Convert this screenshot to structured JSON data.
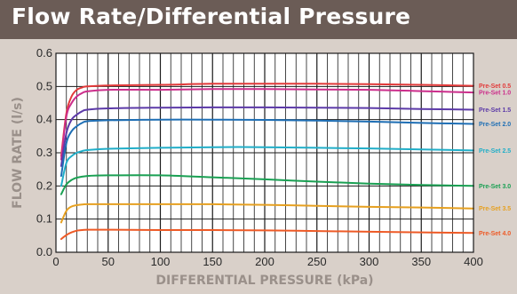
{
  "header": {
    "title": "Flow Rate/Differential Pressure"
  },
  "chart_data": {
    "type": "line",
    "xlabel": "DIFFERENTIAL PRESSURE (kPa)",
    "ylabel": "FLOW RATE (l/s)",
    "xlim": [
      0,
      400
    ],
    "ylim": [
      0,
      0.6
    ],
    "xticks": [
      "0",
      "50",
      "100",
      "150",
      "200",
      "250",
      "300",
      "350",
      "400"
    ],
    "yticks": [
      "0.0",
      "0.1",
      "0.2",
      "0.3",
      "0.4",
      "0.5",
      "0.6"
    ],
    "grid": true,
    "legend": "right",
    "series": [
      {
        "name": "Pre-Set 0.5",
        "color": "#e23a3a",
        "points": [
          [
            5,
            0.29
          ],
          [
            10,
            0.42
          ],
          [
            15,
            0.47
          ],
          [
            20,
            0.49
          ],
          [
            25,
            0.497
          ],
          [
            30,
            0.5
          ],
          [
            50,
            0.503
          ],
          [
            100,
            0.505
          ],
          [
            150,
            0.508
          ],
          [
            200,
            0.508
          ],
          [
            250,
            0.508
          ],
          [
            300,
            0.507
          ],
          [
            350,
            0.505
          ],
          [
            400,
            0.502
          ]
        ]
      },
      {
        "name": "Pre-Set 1.0",
        "color": "#cc2f8c",
        "points": [
          [
            5,
            0.28
          ],
          [
            10,
            0.41
          ],
          [
            15,
            0.45
          ],
          [
            20,
            0.47
          ],
          [
            25,
            0.48
          ],
          [
            30,
            0.485
          ],
          [
            50,
            0.49
          ],
          [
            100,
            0.49
          ],
          [
            150,
            0.492
          ],
          [
            200,
            0.492
          ],
          [
            250,
            0.491
          ],
          [
            300,
            0.49
          ],
          [
            350,
            0.486
          ],
          [
            400,
            0.482
          ]
        ]
      },
      {
        "name": "Pre-Set 1.5",
        "color": "#5c3aa8",
        "points": [
          [
            5,
            0.26
          ],
          [
            10,
            0.36
          ],
          [
            15,
            0.4
          ],
          [
            20,
            0.415
          ],
          [
            25,
            0.425
          ],
          [
            30,
            0.43
          ],
          [
            50,
            0.434
          ],
          [
            100,
            0.436
          ],
          [
            150,
            0.437
          ],
          [
            200,
            0.437
          ],
          [
            250,
            0.436
          ],
          [
            300,
            0.435
          ],
          [
            350,
            0.432
          ],
          [
            400,
            0.43
          ]
        ]
      },
      {
        "name": "Pre-Set 2.0",
        "color": "#1f6fb5",
        "points": [
          [
            5,
            0.23
          ],
          [
            10,
            0.33
          ],
          [
            15,
            0.365
          ],
          [
            20,
            0.38
          ],
          [
            25,
            0.39
          ],
          [
            30,
            0.395
          ],
          [
            50,
            0.398
          ],
          [
            100,
            0.4
          ],
          [
            150,
            0.4
          ],
          [
            200,
            0.399
          ],
          [
            250,
            0.397
          ],
          [
            300,
            0.394
          ],
          [
            350,
            0.39
          ],
          [
            400,
            0.387
          ]
        ]
      },
      {
        "name": "Pre-Set 2.5",
        "color": "#21aec8",
        "points": [
          [
            5,
            0.2
          ],
          [
            10,
            0.27
          ],
          [
            15,
            0.29
          ],
          [
            20,
            0.3
          ],
          [
            25,
            0.305
          ],
          [
            30,
            0.308
          ],
          [
            50,
            0.312
          ],
          [
            100,
            0.315
          ],
          [
            150,
            0.317
          ],
          [
            200,
            0.317
          ],
          [
            250,
            0.315
          ],
          [
            300,
            0.313
          ],
          [
            350,
            0.31
          ],
          [
            400,
            0.307
          ]
        ]
      },
      {
        "name": "Pre-Set 3.0",
        "color": "#1aa053",
        "points": [
          [
            5,
            0.175
          ],
          [
            10,
            0.205
          ],
          [
            15,
            0.218
          ],
          [
            20,
            0.225
          ],
          [
            30,
            0.23
          ],
          [
            50,
            0.232
          ],
          [
            100,
            0.232
          ],
          [
            150,
            0.226
          ],
          [
            200,
            0.22
          ],
          [
            250,
            0.213
          ],
          [
            300,
            0.207
          ],
          [
            350,
            0.203
          ],
          [
            400,
            0.2
          ]
        ]
      },
      {
        "name": "Pre-Set 3.5",
        "color": "#e6a020",
        "points": [
          [
            5,
            0.09
          ],
          [
            10,
            0.125
          ],
          [
            15,
            0.138
          ],
          [
            20,
            0.142
          ],
          [
            25,
            0.144
          ],
          [
            30,
            0.145
          ],
          [
            50,
            0.145
          ],
          [
            100,
            0.145
          ],
          [
            150,
            0.145
          ],
          [
            200,
            0.143
          ],
          [
            250,
            0.14
          ],
          [
            300,
            0.137
          ],
          [
            350,
            0.135
          ],
          [
            400,
            0.132
          ]
        ]
      },
      {
        "name": "Pre-Set 4.0",
        "color": "#ee5a26",
        "points": [
          [
            5,
            0.04
          ],
          [
            10,
            0.052
          ],
          [
            15,
            0.06
          ],
          [
            20,
            0.065
          ],
          [
            25,
            0.067
          ],
          [
            30,
            0.068
          ],
          [
            50,
            0.068
          ],
          [
            100,
            0.067
          ],
          [
            150,
            0.067
          ],
          [
            200,
            0.066
          ],
          [
            250,
            0.064
          ],
          [
            300,
            0.062
          ],
          [
            350,
            0.06
          ],
          [
            400,
            0.058
          ]
        ]
      }
    ]
  }
}
